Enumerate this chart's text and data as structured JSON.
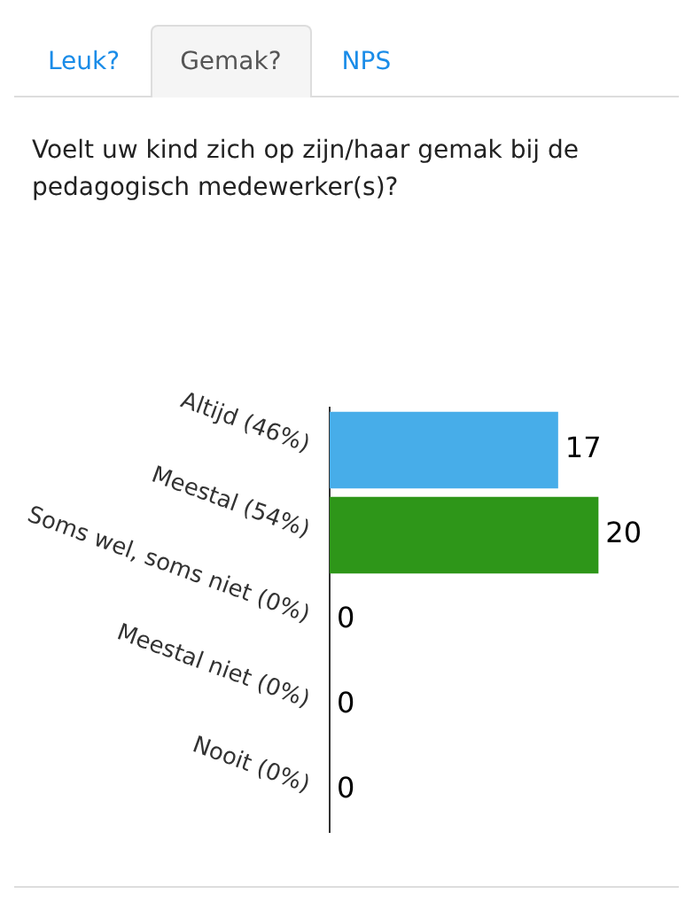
{
  "chart_data": {
    "type": "bar",
    "orientation": "horizontal",
    "title": "Voelt uw kind zich op zijn/haar gemak bij de pedagogisch medewerker(s)?",
    "annotations": [
      "Leuk?",
      "Gemak?",
      "NPS"
    ],
    "categories": [
      "Altijd (46%)",
      "Meestal (54%)",
      "Soms wel, soms niet (0%)",
      "Meestal niet (0%)",
      "Nooit (0%)"
    ],
    "values": [
      17,
      20,
      0,
      0,
      0
    ],
    "colors": [
      "#47ade9",
      "#2e9619",
      "#2e9619",
      "#2e9619",
      "#2e9619"
    ],
    "data_labels": true,
    "grid": false,
    "legend": false
  }
}
